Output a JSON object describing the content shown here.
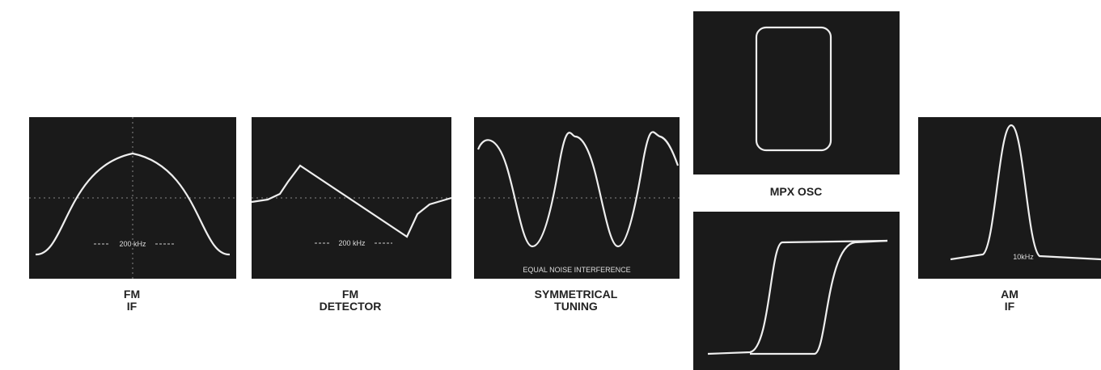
{
  "panels": [
    {
      "caption": [
        "FM",
        "IF"
      ],
      "scope_label": "200 kHz"
    },
    {
      "caption": [
        "FM",
        "DETECTOR"
      ],
      "scope_label": "200 kHz"
    },
    {
      "caption": [
        "SYMMETRICAL",
        "TUNING"
      ],
      "scope_label": "EQUAL NOISE  INTERFERENCE"
    },
    {
      "caption": [
        "MPX  OSC"
      ]
    },
    {
      "caption": []
    },
    {
      "caption": [
        "AM",
        "IF"
      ],
      "scope_label": "10kHz"
    }
  ]
}
